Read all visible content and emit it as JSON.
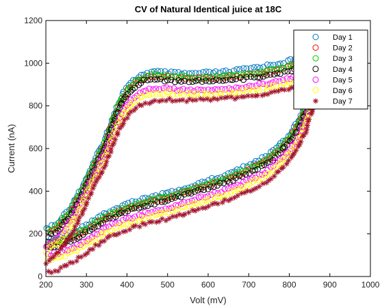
{
  "chart_data": {
    "type": "scatter",
    "title": "CV of Natural Identical juice at 18C",
    "xlabel": "Volt (mV)",
    "ylabel": "Current (nA)",
    "xlim": [
      200,
      1000
    ],
    "ylim": [
      0,
      1200
    ],
    "xticks": [
      200,
      300,
      400,
      500,
      600,
      700,
      800,
      900,
      1000
    ],
    "yticks": [
      0,
      200,
      400,
      600,
      800,
      1000,
      1200
    ],
    "grid": false,
    "legend": "top-right",
    "series": [
      {
        "name": "Day 1",
        "color": "#0072bd",
        "marker": "circle",
        "upper": [
          [
            200,
            220
          ],
          [
            230,
            250
          ],
          [
            260,
            320
          ],
          [
            290,
            420
          ],
          [
            320,
            540
          ],
          [
            350,
            660
          ],
          [
            370,
            770
          ],
          [
            390,
            860
          ],
          [
            410,
            910
          ],
          [
            440,
            950
          ],
          [
            470,
            960
          ],
          [
            500,
            955
          ],
          [
            550,
            950
          ],
          [
            600,
            955
          ],
          [
            650,
            960
          ],
          [
            700,
            975
          ],
          [
            750,
            990
          ],
          [
            800,
            1010
          ],
          [
            840,
            1040
          ],
          [
            860,
            1070
          ],
          [
            880,
            1110
          ]
        ],
        "lower": [
          [
            880,
            1110
          ],
          [
            860,
            920
          ],
          [
            840,
            800
          ],
          [
            820,
            720
          ],
          [
            800,
            660
          ],
          [
            750,
            570
          ],
          [
            700,
            520
          ],
          [
            650,
            480
          ],
          [
            600,
            450
          ],
          [
            550,
            420
          ],
          [
            500,
            390
          ],
          [
            450,
            370
          ],
          [
            400,
            340
          ],
          [
            350,
            300
          ],
          [
            300,
            240
          ],
          [
            260,
            200
          ],
          [
            230,
            180
          ],
          [
            205,
            170
          ]
        ]
      },
      {
        "name": "Day 2",
        "color": "#ff0000",
        "marker": "circle",
        "upper": [
          [
            200,
            200
          ],
          [
            230,
            235
          ],
          [
            260,
            300
          ],
          [
            290,
            400
          ],
          [
            320,
            520
          ],
          [
            350,
            640
          ],
          [
            370,
            750
          ],
          [
            390,
            840
          ],
          [
            410,
            890
          ],
          [
            440,
            930
          ],
          [
            470,
            940
          ],
          [
            500,
            935
          ],
          [
            550,
            930
          ],
          [
            600,
            930
          ],
          [
            650,
            935
          ],
          [
            700,
            945
          ],
          [
            750,
            960
          ],
          [
            800,
            980
          ],
          [
            840,
            1010
          ],
          [
            860,
            1040
          ],
          [
            880,
            1080
          ]
        ],
        "lower": [
          [
            880,
            1080
          ],
          [
            860,
            900
          ],
          [
            840,
            780
          ],
          [
            820,
            700
          ],
          [
            800,
            640
          ],
          [
            750,
            550
          ],
          [
            700,
            500
          ],
          [
            650,
            460
          ],
          [
            600,
            430
          ],
          [
            550,
            400
          ],
          [
            500,
            370
          ],
          [
            450,
            350
          ],
          [
            400,
            320
          ],
          [
            350,
            280
          ],
          [
            300,
            220
          ],
          [
            260,
            180
          ],
          [
            230,
            160
          ],
          [
            205,
            150
          ]
        ]
      },
      {
        "name": "Day 3",
        "color": "#00cc00",
        "marker": "circle",
        "upper": [
          [
            200,
            205
          ],
          [
            230,
            240
          ],
          [
            260,
            305
          ],
          [
            290,
            405
          ],
          [
            320,
            525
          ],
          [
            350,
            645
          ],
          [
            370,
            755
          ],
          [
            390,
            845
          ],
          [
            410,
            895
          ],
          [
            440,
            935
          ],
          [
            470,
            945
          ],
          [
            500,
            940
          ],
          [
            550,
            935
          ],
          [
            600,
            935
          ],
          [
            650,
            940
          ],
          [
            700,
            950
          ],
          [
            750,
            965
          ],
          [
            800,
            985
          ],
          [
            840,
            1015
          ],
          [
            860,
            1045
          ],
          [
            880,
            1085
          ]
        ],
        "lower": [
          [
            880,
            1085
          ],
          [
            860,
            905
          ],
          [
            840,
            785
          ],
          [
            820,
            705
          ],
          [
            800,
            645
          ],
          [
            750,
            555
          ],
          [
            700,
            505
          ],
          [
            650,
            465
          ],
          [
            600,
            435
          ],
          [
            550,
            405
          ],
          [
            500,
            375
          ],
          [
            450,
            355
          ],
          [
            400,
            325
          ],
          [
            350,
            285
          ],
          [
            300,
            225
          ],
          [
            260,
            185
          ],
          [
            230,
            165
          ],
          [
            205,
            155
          ]
        ]
      },
      {
        "name": "Day 4",
        "color": "#000000",
        "marker": "circle",
        "upper": [
          [
            200,
            180
          ],
          [
            230,
            215
          ],
          [
            260,
            285
          ],
          [
            290,
            385
          ],
          [
            320,
            505
          ],
          [
            350,
            625
          ],
          [
            370,
            735
          ],
          [
            390,
            825
          ],
          [
            410,
            875
          ],
          [
            440,
            915
          ],
          [
            470,
            925
          ],
          [
            500,
            920
          ],
          [
            550,
            915
          ],
          [
            600,
            915
          ],
          [
            650,
            920
          ],
          [
            700,
            930
          ],
          [
            750,
            945
          ],
          [
            800,
            965
          ],
          [
            840,
            995
          ],
          [
            860,
            1025
          ],
          [
            880,
            1065
          ]
        ],
        "lower": [
          [
            880,
            1065
          ],
          [
            860,
            885
          ],
          [
            840,
            765
          ],
          [
            820,
            685
          ],
          [
            800,
            625
          ],
          [
            750,
            535
          ],
          [
            700,
            485
          ],
          [
            650,
            445
          ],
          [
            600,
            415
          ],
          [
            550,
            385
          ],
          [
            500,
            355
          ],
          [
            450,
            335
          ],
          [
            400,
            305
          ],
          [
            350,
            265
          ],
          [
            300,
            205
          ],
          [
            260,
            165
          ],
          [
            230,
            145
          ],
          [
            205,
            135
          ]
        ]
      },
      {
        "name": "Day 5",
        "color": "#ff00ff",
        "marker": "circle",
        "upper": [
          [
            200,
            140
          ],
          [
            230,
            180
          ],
          [
            260,
            255
          ],
          [
            290,
            360
          ],
          [
            320,
            480
          ],
          [
            350,
            600
          ],
          [
            370,
            700
          ],
          [
            390,
            780
          ],
          [
            410,
            830
          ],
          [
            440,
            870
          ],
          [
            470,
            880
          ],
          [
            500,
            880
          ],
          [
            550,
            875
          ],
          [
            600,
            875
          ],
          [
            650,
            880
          ],
          [
            700,
            890
          ],
          [
            750,
            905
          ],
          [
            800,
            925
          ],
          [
            840,
            955
          ],
          [
            860,
            985
          ],
          [
            880,
            1020
          ]
        ],
        "lower": [
          [
            880,
            1020
          ],
          [
            860,
            850
          ],
          [
            840,
            730
          ],
          [
            820,
            650
          ],
          [
            800,
            590
          ],
          [
            750,
            500
          ],
          [
            700,
            450
          ],
          [
            650,
            410
          ],
          [
            600,
            380
          ],
          [
            550,
            350
          ],
          [
            500,
            320
          ],
          [
            450,
            300
          ],
          [
            400,
            270
          ],
          [
            350,
            230
          ],
          [
            300,
            170
          ],
          [
            260,
            130
          ],
          [
            230,
            110
          ],
          [
            205,
            100
          ]
        ]
      },
      {
        "name": "Day 6",
        "color": "#ffff00",
        "marker": "circle",
        "upper": [
          [
            200,
            120
          ],
          [
            230,
            160
          ],
          [
            260,
            235
          ],
          [
            290,
            340
          ],
          [
            320,
            460
          ],
          [
            350,
            580
          ],
          [
            370,
            680
          ],
          [
            390,
            760
          ],
          [
            410,
            810
          ],
          [
            440,
            850
          ],
          [
            470,
            860
          ],
          [
            500,
            860
          ],
          [
            550,
            855
          ],
          [
            600,
            855
          ],
          [
            650,
            860
          ],
          [
            700,
            870
          ],
          [
            750,
            885
          ],
          [
            800,
            905
          ],
          [
            840,
            935
          ],
          [
            860,
            965
          ],
          [
            880,
            1000
          ]
        ],
        "lower": [
          [
            880,
            1000
          ],
          [
            860,
            830
          ],
          [
            840,
            710
          ],
          [
            820,
            630
          ],
          [
            800,
            570
          ],
          [
            750,
            480
          ],
          [
            700,
            430
          ],
          [
            650,
            390
          ],
          [
            600,
            360
          ],
          [
            550,
            330
          ],
          [
            500,
            300
          ],
          [
            450,
            280
          ],
          [
            400,
            250
          ],
          [
            350,
            210
          ],
          [
            300,
            150
          ],
          [
            260,
            110
          ],
          [
            230,
            90
          ],
          [
            205,
            80
          ]
        ]
      },
      {
        "name": "Day 7",
        "color": "#a2142f",
        "marker": "asterisk",
        "upper": [
          [
            200,
            60
          ],
          [
            230,
            110
          ],
          [
            260,
            190
          ],
          [
            290,
            300
          ],
          [
            320,
            420
          ],
          [
            350,
            540
          ],
          [
            370,
            640
          ],
          [
            390,
            720
          ],
          [
            410,
            770
          ],
          [
            440,
            810
          ],
          [
            470,
            825
          ],
          [
            500,
            830
          ],
          [
            550,
            825
          ],
          [
            600,
            830
          ],
          [
            650,
            835
          ],
          [
            700,
            845
          ],
          [
            750,
            860
          ],
          [
            800,
            880
          ],
          [
            840,
            905
          ],
          [
            860,
            930
          ],
          [
            880,
            960
          ]
        ],
        "lower": [
          [
            880,
            960
          ],
          [
            860,
            800
          ],
          [
            840,
            680
          ],
          [
            820,
            600
          ],
          [
            800,
            540
          ],
          [
            750,
            450
          ],
          [
            700,
            400
          ],
          [
            650,
            360
          ],
          [
            600,
            330
          ],
          [
            550,
            300
          ],
          [
            500,
            270
          ],
          [
            450,
            250
          ],
          [
            400,
            220
          ],
          [
            350,
            180
          ],
          [
            300,
            110
          ],
          [
            260,
            60
          ],
          [
            230,
            30
          ],
          [
            205,
            20
          ]
        ]
      }
    ]
  }
}
